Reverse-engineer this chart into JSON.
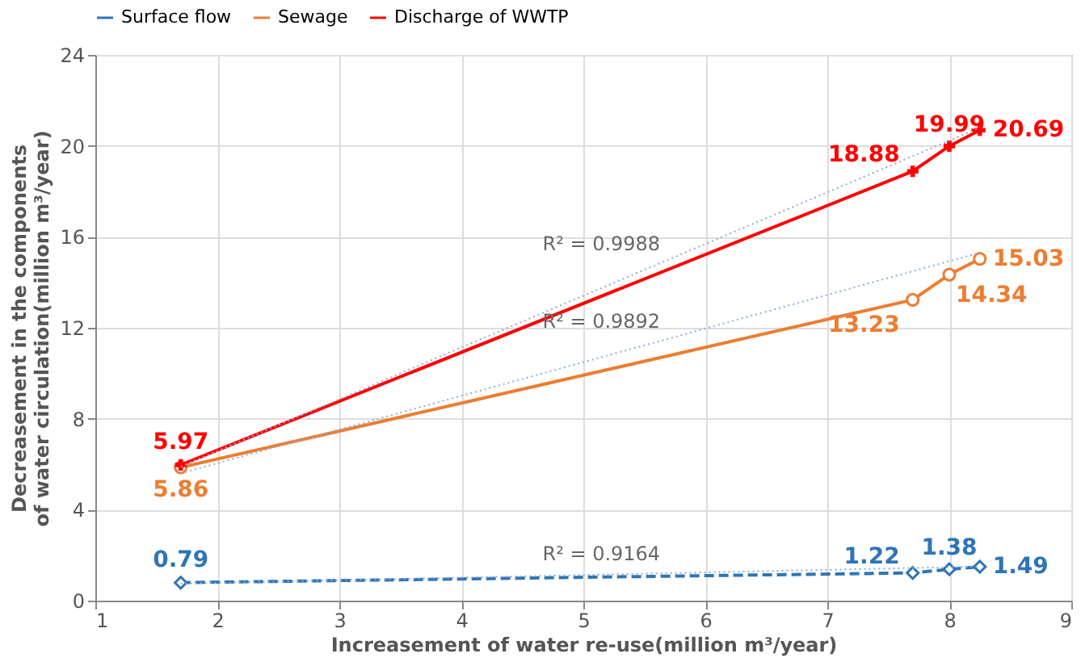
{
  "chart_data": {
    "type": "line",
    "xlabel": "Increasement of water re-use(million m³/year)",
    "ylabel": "Decreasement in the components of water circulation(million m³/year)",
    "xlim": [
      1,
      9
    ],
    "xticks": [
      1,
      2,
      3,
      4,
      5,
      6,
      7,
      8,
      9
    ],
    "ylim": [
      0,
      24
    ],
    "yticks": [
      0,
      4,
      8,
      12,
      16,
      20,
      24
    ],
    "grid": true,
    "legend": "top",
    "data_labels": true,
    "series": [
      {
        "name": "Surface flow",
        "color": "#2e75b6",
        "x": [
          1.7,
          7.7,
          8.0,
          8.25
        ],
        "values": [
          0.79,
          1.22,
          1.38,
          1.49
        ],
        "marker": "diamond",
        "line_style": "dashed"
      },
      {
        "name": "Sewage",
        "color": "#ed7d31",
        "x": [
          1.7,
          7.7,
          8.0,
          8.25
        ],
        "values": [
          5.86,
          13.23,
          14.34,
          15.03
        ],
        "marker": "circle",
        "line_style": "solid"
      },
      {
        "name": "Discharge of WWTP",
        "color": "#ff0000",
        "x": [
          1.7,
          7.7,
          8.0,
          8.25
        ],
        "values": [
          5.97,
          18.88,
          19.99,
          20.69
        ],
        "marker": "cross",
        "line_style": "solid"
      },
      {
        "type": "line",
        "color": "#8faadc",
        "x": [
          1.7,
          8.25
        ],
        "values": [
          0.75,
          1.5
        ],
        "value_labels": [
          null,
          null
        ],
        "marker": "none",
        "line_style": "dotted"
      },
      {
        "type": "line",
        "color": "#8faadc",
        "x": [
          1.7,
          8.25
        ],
        "values": [
          5.6,
          15.3
        ],
        "value_labels": [
          null,
          null
        ],
        "marker": "none",
        "line_style": "dotted"
      },
      {
        "type": "line",
        "color": "#8faadc",
        "x": [
          1.7,
          8.25
        ],
        "values": [
          5.9,
          20.8
        ],
        "value_labels": [
          null,
          null
        ],
        "marker": "none",
        "line_style": "dotted"
      }
    ],
    "annotations": [
      "R² = 0.9988",
      "R² = 0.9892",
      "R² = 0.9164"
    ]
  }
}
